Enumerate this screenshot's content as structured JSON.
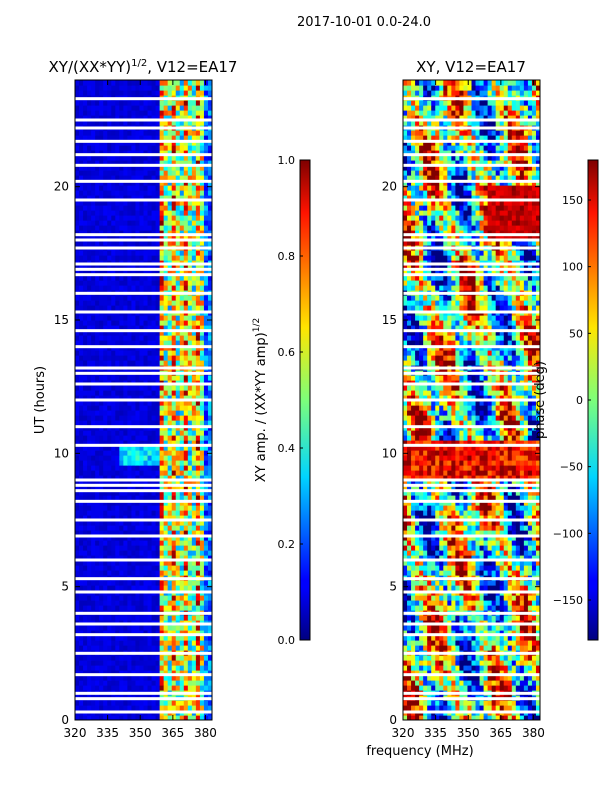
{
  "suptitle": "2017-10-01 0.0-24.0",
  "shared_xlabel": "frequency (MHz)",
  "chart_data": [
    {
      "type": "heatmap",
      "title_main": "XY/(XX*YY)",
      "title_sup": "1/2",
      "title_tail": ", V12=EA17",
      "ylabel": "UT (hours)",
      "xlim": [
        320,
        383
      ],
      "ylim": [
        0,
        24
      ],
      "xticks": [
        320,
        335,
        350,
        365,
        380
      ],
      "yticks": [
        0,
        5,
        10,
        15,
        20
      ],
      "colorbar": {
        "label_main": "XY amp. / (XX*YY amp)",
        "label_sup": "1/2",
        "range": [
          0.0,
          1.0
        ],
        "ticks": [
          "0.0",
          "0.2",
          "0.4",
          "0.6",
          "0.8",
          "1.0"
        ],
        "tick_values": [
          0.0,
          0.2,
          0.4,
          0.6,
          0.8,
          1.0
        ],
        "colormap": "jet"
      },
      "gaps_hours": [
        0.3,
        0.8,
        1.0,
        1.7,
        2.5,
        3.2,
        3.6,
        4.0,
        4.8,
        5.3,
        6.0,
        6.9,
        7.5,
        8.2,
        8.6,
        8.8,
        9.0,
        10.3,
        11.0,
        12.0,
        12.6,
        13.0,
        13.2,
        14.0,
        14.6,
        15.3,
        16.0,
        16.7,
        16.9,
        17.1,
        17.7,
        18.0,
        18.2,
        19.5,
        20.2,
        20.8,
        21.2,
        21.7,
        22.2,
        22.5,
        23.3
      ]
    },
    {
      "type": "heatmap",
      "title_main": "XY, V12=EA17",
      "ylabel": "",
      "xlim": [
        320,
        383
      ],
      "ylim": [
        0,
        24
      ],
      "xticks": [
        320,
        335,
        350,
        365,
        380
      ],
      "yticks": [
        0,
        5,
        10,
        15,
        20
      ],
      "colorbar": {
        "label_main": "phase (deg)",
        "range": [
          -180,
          180
        ],
        "ticks": [
          "−150",
          "−100",
          "−50",
          "0",
          "50",
          "100",
          "150"
        ],
        "tick_values": [
          -150,
          -100,
          -50,
          0,
          50,
          100,
          150
        ],
        "colormap": "jet"
      },
      "gaps_hours": [
        0.3,
        0.8,
        1.0,
        1.7,
        2.5,
        3.2,
        3.6,
        4.0,
        4.8,
        5.3,
        6.0,
        6.9,
        7.5,
        8.2,
        8.6,
        8.8,
        9.0,
        10.3,
        11.0,
        12.0,
        12.6,
        13.0,
        13.2,
        14.0,
        14.6,
        15.3,
        16.0,
        16.7,
        16.9,
        17.1,
        17.7,
        18.0,
        18.2,
        19.5,
        20.2,
        20.8,
        21.2,
        21.7,
        22.2,
        22.5,
        23.3
      ]
    }
  ]
}
